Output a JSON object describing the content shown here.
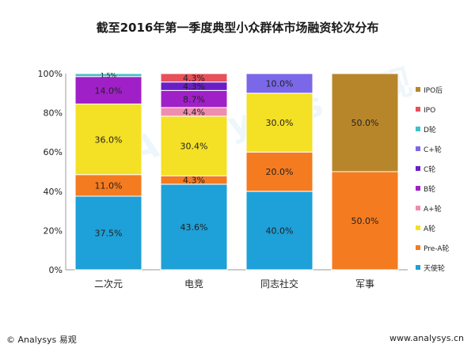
{
  "chart_data": {
    "type": "bar",
    "stacked": true,
    "title": "截至2016年第一季度典型小众群体市场融资轮次分布",
    "categories": [
      "二次元",
      "电竞",
      "同志社交",
      "军事"
    ],
    "yticks": [
      "0%",
      "20%",
      "40%",
      "60%",
      "80%",
      "100%"
    ],
    "ylim": [
      0,
      100
    ],
    "legend_position": "right",
    "series": [
      {
        "name": "天使轮",
        "color": "#1ea0d8",
        "values": [
          37.5,
          43.6,
          40.0,
          0
        ],
        "labels": [
          "37.5%",
          "43.6%",
          "40.0%",
          ""
        ]
      },
      {
        "name": "Pre-A轮",
        "color": "#f47b20",
        "values": [
          11.0,
          4.3,
          20.0,
          50.0
        ],
        "labels": [
          "11.0%",
          "4.3%",
          "20.0%",
          "50.0%"
        ]
      },
      {
        "name": "A轮",
        "color": "#f4e025",
        "values": [
          36.0,
          30.4,
          30.0,
          0
        ],
        "labels": [
          "36.0%",
          "30.4%",
          "30.0%",
          ""
        ]
      },
      {
        "name": "A+轮",
        "color": "#f08cb0",
        "values": [
          0,
          4.4,
          0,
          0
        ],
        "labels": [
          "",
          "4.4%",
          "",
          ""
        ]
      },
      {
        "name": "B轮",
        "color": "#a020c8",
        "values": [
          14.0,
          8.7,
          0,
          0
        ],
        "labels": [
          "14.0%",
          "8.7%",
          "",
          ""
        ]
      },
      {
        "name": "C轮",
        "color": "#6a1ec8",
        "values": [
          0,
          4.3,
          0,
          0
        ],
        "labels": [
          "",
          "4.3%",
          "",
          ""
        ]
      },
      {
        "name": "C+轮",
        "color": "#7b68e8",
        "values": [
          0,
          0,
          10.0,
          0
        ],
        "labels": [
          "",
          "",
          "10.0%",
          ""
        ]
      },
      {
        "name": "D轮",
        "color": "#40c0c8",
        "values": [
          1.5,
          0,
          0,
          0
        ],
        "labels": [
          "1.5%",
          "",
          "",
          ""
        ]
      },
      {
        "name": "IPO",
        "color": "#e8505a",
        "values": [
          0,
          4.3,
          0,
          0
        ],
        "labels": [
          "",
          "4.3%",
          "",
          ""
        ]
      },
      {
        "name": "IPO后",
        "color": "#b8862a",
        "values": [
          0,
          0,
          0,
          50.0
        ],
        "labels": [
          "",
          "",
          "",
          "50.0%"
        ]
      }
    ]
  },
  "footer": {
    "left": "© Analysys 易观",
    "right": "www.analysys.cn"
  },
  "watermark": "Analysys 易观"
}
